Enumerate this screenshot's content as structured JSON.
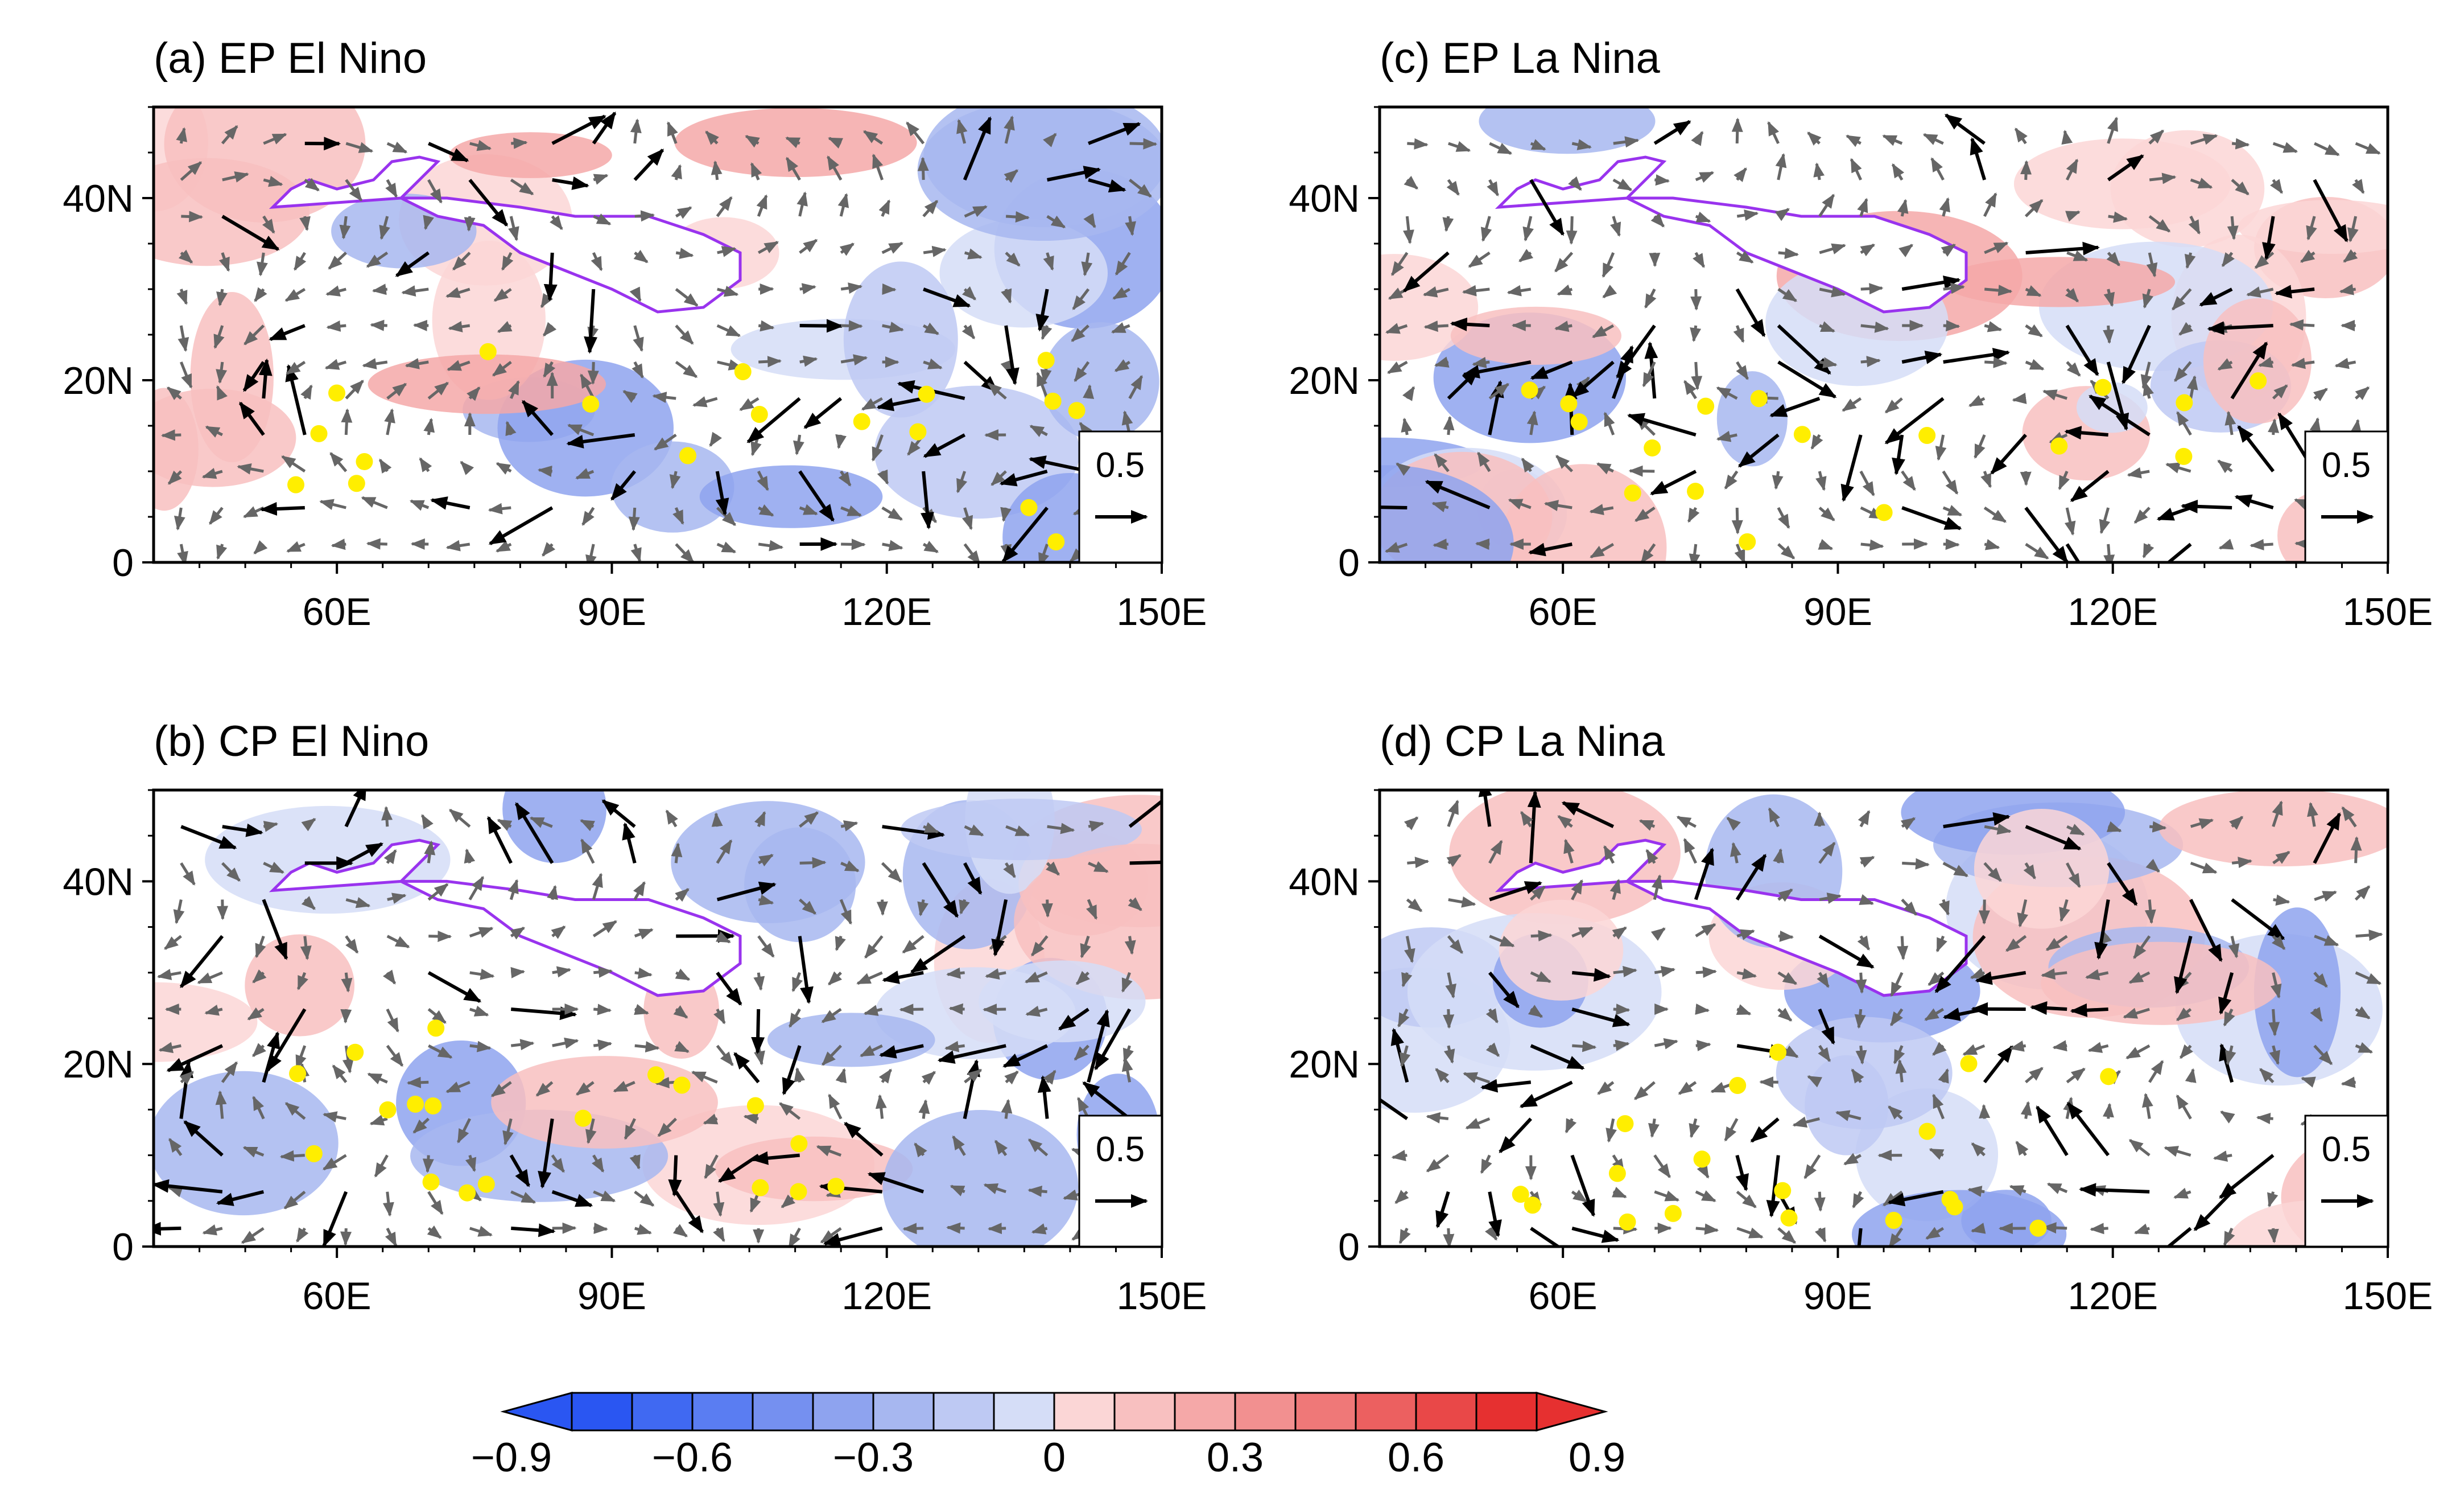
{
  "panels": [
    {
      "id": "a",
      "title": "(a) EP El Nino"
    },
    {
      "id": "c",
      "title": "(c) EP La Nina"
    },
    {
      "id": "b",
      "title": "(b) CP El Nino"
    },
    {
      "id": "d",
      "title": "(d) CP La Nina"
    }
  ],
  "axes": {
    "lon_range": [
      40,
      150
    ],
    "lat_range": [
      0,
      50
    ],
    "x_ticks": [
      {
        "value": 60,
        "label": "60E"
      },
      {
        "value": 90,
        "label": "90E"
      },
      {
        "value": 120,
        "label": "120E"
      },
      {
        "value": 150,
        "label": "150E"
      }
    ],
    "y_ticks": [
      {
        "value": 0,
        "label": "0"
      },
      {
        "value": 20,
        "label": "20N"
      },
      {
        "value": 40,
        "label": "40N"
      }
    ]
  },
  "reference_vector": {
    "label": "0.5"
  },
  "colorbar": {
    "ticks": [
      {
        "value": -0.9,
        "label": "−0.9"
      },
      {
        "value": -0.6,
        "label": "−0.6"
      },
      {
        "value": -0.3,
        "label": "−0.3"
      },
      {
        "value": 0,
        "label": "0"
      },
      {
        "value": 0.3,
        "label": "0.3"
      },
      {
        "value": 0.6,
        "label": "0.6"
      },
      {
        "value": 0.9,
        "label": "0.9"
      }
    ],
    "colors": [
      "#2a56f2",
      "#4069f2",
      "#5a7df2",
      "#7590f0",
      "#8ea3ef",
      "#a7b7f0",
      "#bec9f3",
      "#d5ddf7",
      "#fbd6d6",
      "#f8c0c0",
      "#f5a8a8",
      "#f29090",
      "#ef7878",
      "#ec6060",
      "#e94848",
      "#e63030"
    ]
  },
  "colors": {
    "tibetan_plateau": "#9933ee",
    "significant_dot": "#ffee00",
    "vector_significant": "#000000",
    "vector_other": "#666666"
  }
}
